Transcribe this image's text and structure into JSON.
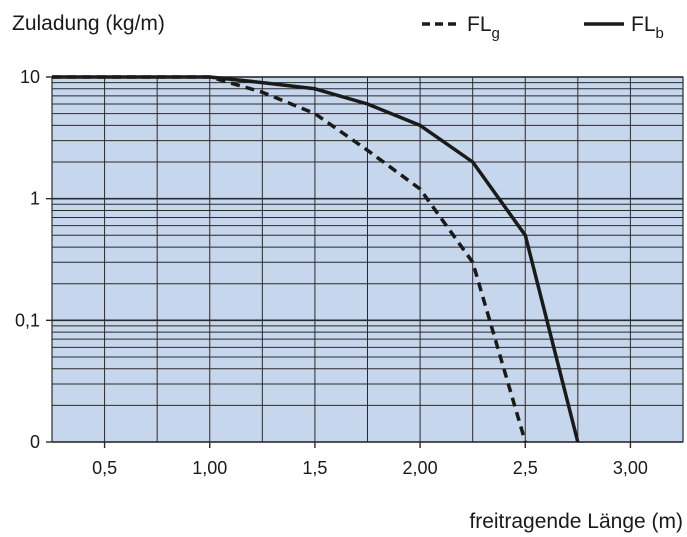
{
  "chart_data": {
    "type": "line",
    "ylabel": "Zuladung (kg/m)",
    "xlabel": "freitragende Länge (m)",
    "xlim": [
      0.25,
      3.25
    ],
    "x_ticks": [
      {
        "value": 0.5,
        "label": "0,5"
      },
      {
        "value": 1.0,
        "label": "1,00"
      },
      {
        "value": 1.5,
        "label": "1,5"
      },
      {
        "value": 2.0,
        "label": "2,00"
      },
      {
        "value": 2.5,
        "label": "2,5"
      },
      {
        "value": 3.0,
        "label": "3,00"
      }
    ],
    "y_scale": "log",
    "y_ticks": [
      {
        "value": 10,
        "label": "10"
      },
      {
        "value": 1,
        "label": "1"
      },
      {
        "value": 0.1,
        "label": "0,1"
      },
      {
        "value": 0.01,
        "label": "0"
      }
    ],
    "grid": true,
    "legend_position": "top-right",
    "series": [
      {
        "name": "FL",
        "subscript": "g",
        "style": "dashed",
        "color": "#1a1a1a",
        "x": [
          0.25,
          1.0,
          1.25,
          1.5,
          1.75,
          2.0,
          2.25,
          2.5
        ],
        "y": [
          10,
          10,
          7.5,
          5,
          2.5,
          1.2,
          0.3,
          0.01
        ]
      },
      {
        "name": "FL",
        "subscript": "b",
        "style": "solid",
        "color": "#1a1a1a",
        "x": [
          0.25,
          1.0,
          1.25,
          1.5,
          1.75,
          2.0,
          2.25,
          2.5,
          2.75
        ],
        "y": [
          10,
          10,
          9,
          8,
          6,
          4,
          2,
          0.5,
          0.01
        ]
      }
    ],
    "colors": {
      "plot_background": "#c6d6ec",
      "grid": "#2a2a2a"
    }
  }
}
